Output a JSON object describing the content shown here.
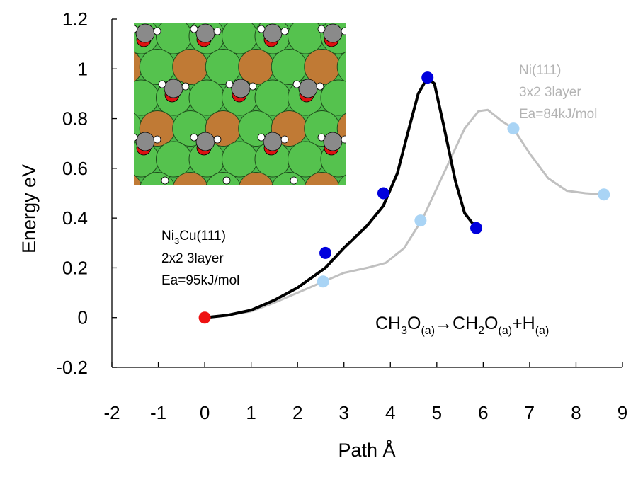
{
  "chart_data": {
    "type": "line",
    "xlabel": "Path  Å",
    "ylabel": "Energy  eV",
    "xlim": [
      -2,
      9
    ],
    "ylim": [
      -0.2,
      1.2
    ],
    "x_ticks": [
      "-2",
      "-1",
      "0",
      "1",
      "2",
      "3",
      "4",
      "5",
      "6",
      "7",
      "8",
      "9"
    ],
    "y_ticks": [
      "-0.2",
      "0",
      "0.2",
      "0.4",
      "0.6",
      "0.8",
      "1",
      "1.2"
    ],
    "grid": false,
    "series": [
      {
        "name": "Ni(111)",
        "color": "#c0c0c0",
        "marker_color": "#a9d4f5",
        "curve": [
          [
            0,
            0
          ],
          [
            0.5,
            0.01
          ],
          [
            1,
            0.025
          ],
          [
            1.5,
            0.06
          ],
          [
            2,
            0.1
          ],
          [
            2.5,
            0.14
          ],
          [
            3,
            0.18
          ],
          [
            3.5,
            0.2
          ],
          [
            3.9,
            0.22
          ],
          [
            4.3,
            0.28
          ],
          [
            4.7,
            0.4
          ],
          [
            5.0,
            0.52
          ],
          [
            5.3,
            0.64
          ],
          [
            5.6,
            0.76
          ],
          [
            5.9,
            0.83
          ],
          [
            6.1,
            0.835
          ],
          [
            6.4,
            0.79
          ],
          [
            6.65,
            0.76
          ],
          [
            7.0,
            0.66
          ],
          [
            7.4,
            0.56
          ],
          [
            7.8,
            0.51
          ],
          [
            8.2,
            0.5
          ],
          [
            8.6,
            0.495
          ]
        ],
        "points": [
          [
            2.55,
            0.145
          ],
          [
            4.65,
            0.39
          ],
          [
            6.65,
            0.76
          ],
          [
            8.6,
            0.495
          ]
        ]
      },
      {
        "name": "Ni3Cu(111)",
        "color": "#000000",
        "marker_color": "#0000dd",
        "curve": [
          [
            0,
            0
          ],
          [
            0.5,
            0.01
          ],
          [
            1,
            0.03
          ],
          [
            1.5,
            0.07
          ],
          [
            2,
            0.12
          ],
          [
            2.6,
            0.2
          ],
          [
            3,
            0.28
          ],
          [
            3.5,
            0.37
          ],
          [
            3.85,
            0.45
          ],
          [
            4.15,
            0.58
          ],
          [
            4.4,
            0.76
          ],
          [
            4.6,
            0.9
          ],
          [
            4.8,
            0.965
          ],
          [
            4.95,
            0.94
          ],
          [
            5.15,
            0.77
          ],
          [
            5.4,
            0.55
          ],
          [
            5.6,
            0.42
          ],
          [
            5.85,
            0.36
          ]
        ],
        "points": [
          [
            2.6,
            0.26
          ],
          [
            3.85,
            0.5
          ],
          [
            4.8,
            0.965
          ],
          [
            5.85,
            0.36
          ]
        ]
      }
    ],
    "start_point": {
      "x": 0,
      "y": 0,
      "color": "#ee1111"
    },
    "annotations": {
      "ni111": {
        "lines": [
          "Ni(111)",
          "3x2 3layer",
          "Ea=84kJ/mol"
        ],
        "color": "#b3b3b3"
      },
      "ni3cu": {
        "line1_main": "Ni",
        "line1_sub": "3",
        "line1_rest": "Cu(111)",
        "line2": "2x2 3layer",
        "line3": "Ea=95kJ/mol",
        "color": "#000000"
      },
      "reaction": {
        "p1": "CH",
        "s1": "3",
        "p2": "O",
        "s2": "(a)",
        "arrow": "→",
        "p3": "CH",
        "s3": "2",
        "p4": "O",
        "s4": "(a)",
        "p5": "+H",
        "s5": "(a)"
      }
    },
    "inset": {
      "colors": {
        "ni": "#55c24e",
        "cu": "#c07a35",
        "carbon": "#8a8a8a",
        "oxygen": "#dd1111",
        "hydrogen": "#ffffff",
        "background": "#4ab84a"
      }
    }
  }
}
